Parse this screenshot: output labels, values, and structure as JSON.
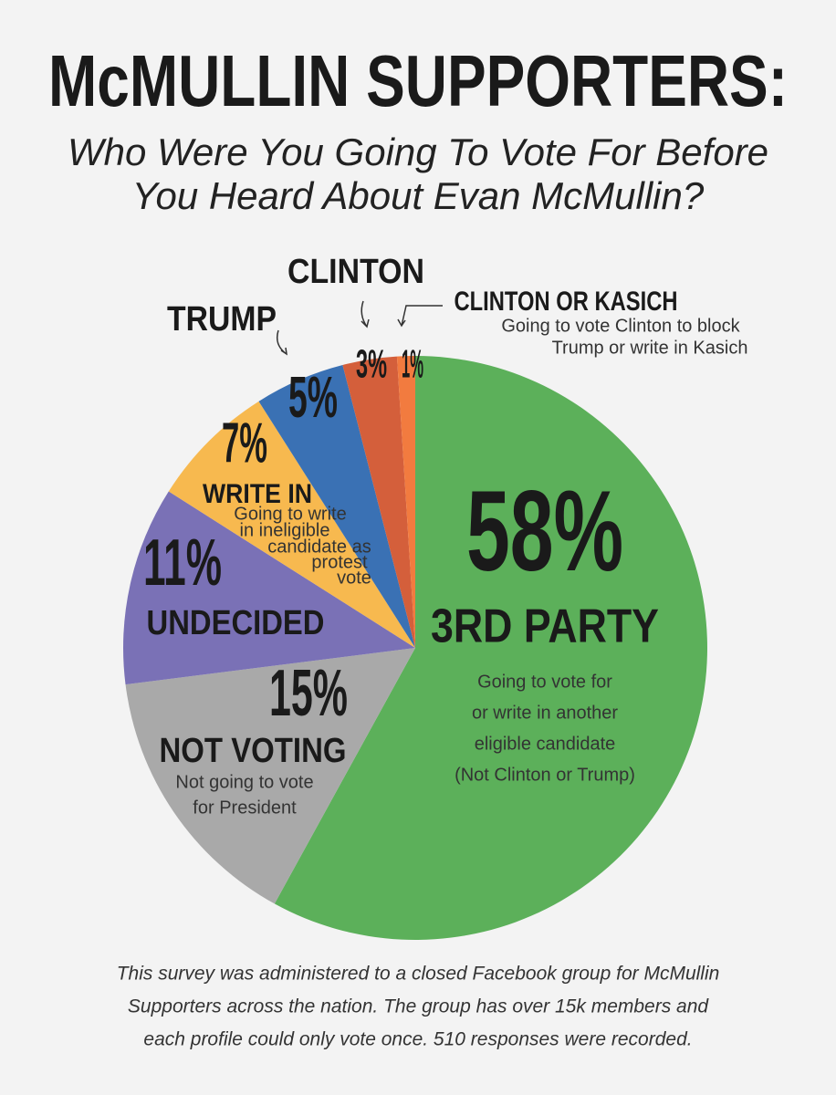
{
  "chart_data": {
    "type": "pie",
    "title": "McMULLIN SUPPORTERS:",
    "subtitle": [
      "Who Were You Going To Vote For Before",
      "You Heard About Evan McMullin?"
    ],
    "categories": [
      "3RD PARTY",
      "NOT VOTING",
      "UNDECIDED",
      "WRITE IN",
      "TRUMP",
      "CLINTON",
      "CLINTON OR KASICH"
    ],
    "values": [
      58,
      15,
      11,
      7,
      5,
      3,
      1
    ],
    "value_labels": [
      "58%",
      "15%",
      "11%",
      "7%",
      "5%",
      "3%",
      "1%"
    ],
    "colors": [
      "#5cb05a",
      "#a9a9a9",
      "#7a71b6",
      "#f7b94f",
      "#3a71b4",
      "#d45f3b",
      "#f27b3f"
    ],
    "descriptions": [
      [
        "Going to vote for",
        "or write in another",
        "eligible candidate",
        "(Not Clinton or Trump)"
      ],
      [
        "Not going to vote",
        "for President"
      ],
      null,
      [
        "Going to write",
        "in ineligible",
        "candidate as",
        "protest",
        "vote"
      ],
      null,
      null,
      [
        "Going to vote Clinton to block",
        "Trump or write in Kasich"
      ]
    ],
    "footnote": [
      "This survey was administered to a closed Facebook group for McMullin",
      "Supporters across the nation. The group has over 15k members and",
      "each profile could only vote once. 510 responses were recorded."
    ]
  }
}
